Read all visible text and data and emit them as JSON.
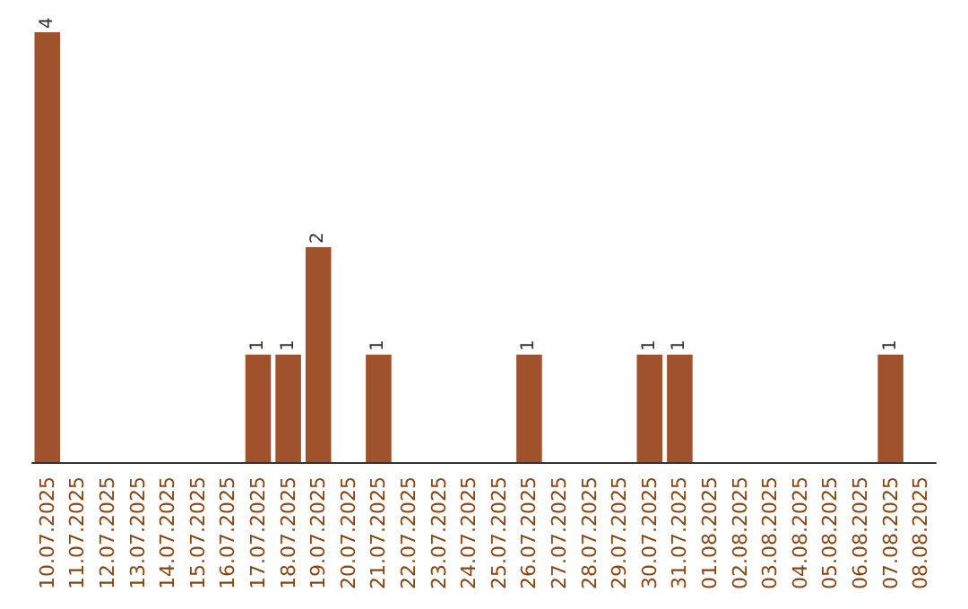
{
  "chart_data": {
    "type": "bar",
    "categories": [
      "10.07.2025",
      "11.07.2025",
      "12.07.2025",
      "13.07.2025",
      "14.07.2025",
      "15.07.2025",
      "16.07.2025",
      "17.07.2025",
      "18.07.2025",
      "19.07.2025",
      "20.07.2025",
      "21.07.2025",
      "22.07.2025",
      "23.07.2025",
      "24.07.2025",
      "25.07.2025",
      "26.07.2025",
      "27.07.2025",
      "28.07.2025",
      "29.07.2025",
      "30.07.2025",
      "31.07.2025",
      "01.08.2025",
      "02.08.2025",
      "03.08.2025",
      "04.08.2025",
      "05.08.2025",
      "06.08.2025",
      "07.08.2025",
      "08.08.2025"
    ],
    "values": [
      4,
      0,
      0,
      0,
      0,
      0,
      0,
      1,
      1,
      2,
      0,
      1,
      0,
      0,
      0,
      0,
      1,
      0,
      0,
      0,
      1,
      1,
      0,
      0,
      0,
      0,
      0,
      0,
      1,
      0
    ],
    "value_labels": [
      "4",
      null,
      null,
      null,
      null,
      null,
      null,
      "1",
      "1",
      "2",
      null,
      "1",
      null,
      null,
      null,
      null,
      "1",
      null,
      null,
      null,
      "1",
      "1",
      null,
      null,
      null,
      null,
      null,
      null,
      "1",
      null
    ],
    "color": "#a0522d",
    "tick_labels": "x"
  }
}
